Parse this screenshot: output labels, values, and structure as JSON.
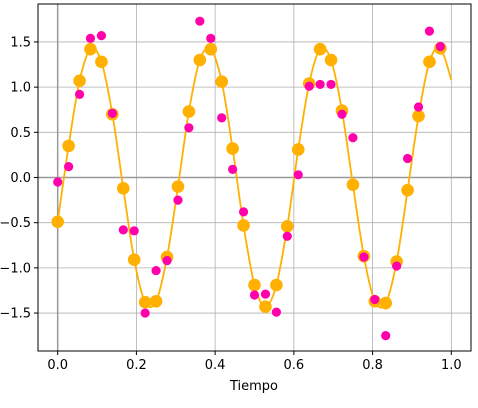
{
  "chart_data": {
    "type": "scatter",
    "title": "",
    "xlabel": "Tiempo",
    "ylabel": "",
    "xlim": [
      -0.05,
      1.05
    ],
    "ylim": [
      -1.92,
      1.92
    ],
    "xticks": [
      0.0,
      0.2,
      0.4,
      0.6,
      0.8,
      1.0
    ],
    "xtick_labels": [
      "0.0",
      "0.2",
      "0.4",
      "0.6",
      "0.8",
      "1.0"
    ],
    "yticks": [
      -1.5,
      -1.0,
      -0.5,
      0.0,
      0.5,
      1.0,
      1.5
    ],
    "ytick_labels": [
      "−1.5",
      "−1.0",
      "−0.5",
      "0.0",
      "0.5",
      "1.0",
      "1.5"
    ],
    "grid": true,
    "reference_lines": {
      "x": 0,
      "y": 0,
      "color": "#999999"
    },
    "series": [
      {
        "kind": "line_with_markers",
        "color": "#FFB000",
        "x": [
          0.0,
          0.0278,
          0.0556,
          0.0833,
          0.1111,
          0.1389,
          0.1667,
          0.1944,
          0.2222,
          0.25,
          0.2778,
          0.3056,
          0.3333,
          0.3611,
          0.3889,
          0.4167,
          0.4444,
          0.4722,
          0.5,
          0.5278,
          0.5556,
          0.5833,
          0.6111,
          0.6389,
          0.6667,
          0.6944,
          0.7222,
          0.75,
          0.7778,
          0.8056,
          0.8333,
          0.8611,
          0.8889,
          0.9167,
          0.9444,
          0.9722,
          1.0
        ],
        "y": [
          -0.49,
          0.35,
          1.07,
          1.42,
          1.28,
          0.7,
          -0.12,
          -0.91,
          -1.38,
          -1.37,
          -0.88,
          -0.1,
          0.73,
          1.3,
          1.42,
          1.06,
          0.32,
          -0.53,
          -1.19,
          -1.43,
          -1.19,
          -0.54,
          0.31,
          1.04,
          1.42,
          1.3,
          0.74,
          -0.08,
          -0.87,
          -1.37,
          -1.39,
          -0.93,
          -0.14,
          0.68,
          1.28,
          1.43,
          1.08
        ]
      },
      {
        "kind": "scatter",
        "color": "#FF00AA",
        "x": [
          0.0,
          0.0278,
          0.0556,
          0.0833,
          0.1111,
          0.1389,
          0.1667,
          0.1944,
          0.2222,
          0.25,
          0.2778,
          0.3056,
          0.3333,
          0.3611,
          0.3889,
          0.4167,
          0.4444,
          0.4722,
          0.5,
          0.5278,
          0.5556,
          0.5833,
          0.6111,
          0.6389,
          0.6667,
          0.6944,
          0.7222,
          0.75,
          0.7778,
          0.8056,
          0.8333,
          0.8611,
          0.8889,
          0.9167,
          0.9444,
          0.9722
        ],
        "y": [
          -0.05,
          0.12,
          0.92,
          1.54,
          1.57,
          0.71,
          -0.58,
          -0.59,
          -1.5,
          -1.03,
          -0.92,
          -0.25,
          0.55,
          1.73,
          1.54,
          0.66,
          0.09,
          -0.38,
          -1.3,
          -1.29,
          -1.49,
          -0.65,
          0.03,
          1.01,
          1.03,
          1.03,
          0.7,
          0.44,
          -0.88,
          -1.35,
          -1.75,
          -0.98,
          0.21,
          0.78,
          1.62,
          1.45
        ]
      }
    ]
  }
}
